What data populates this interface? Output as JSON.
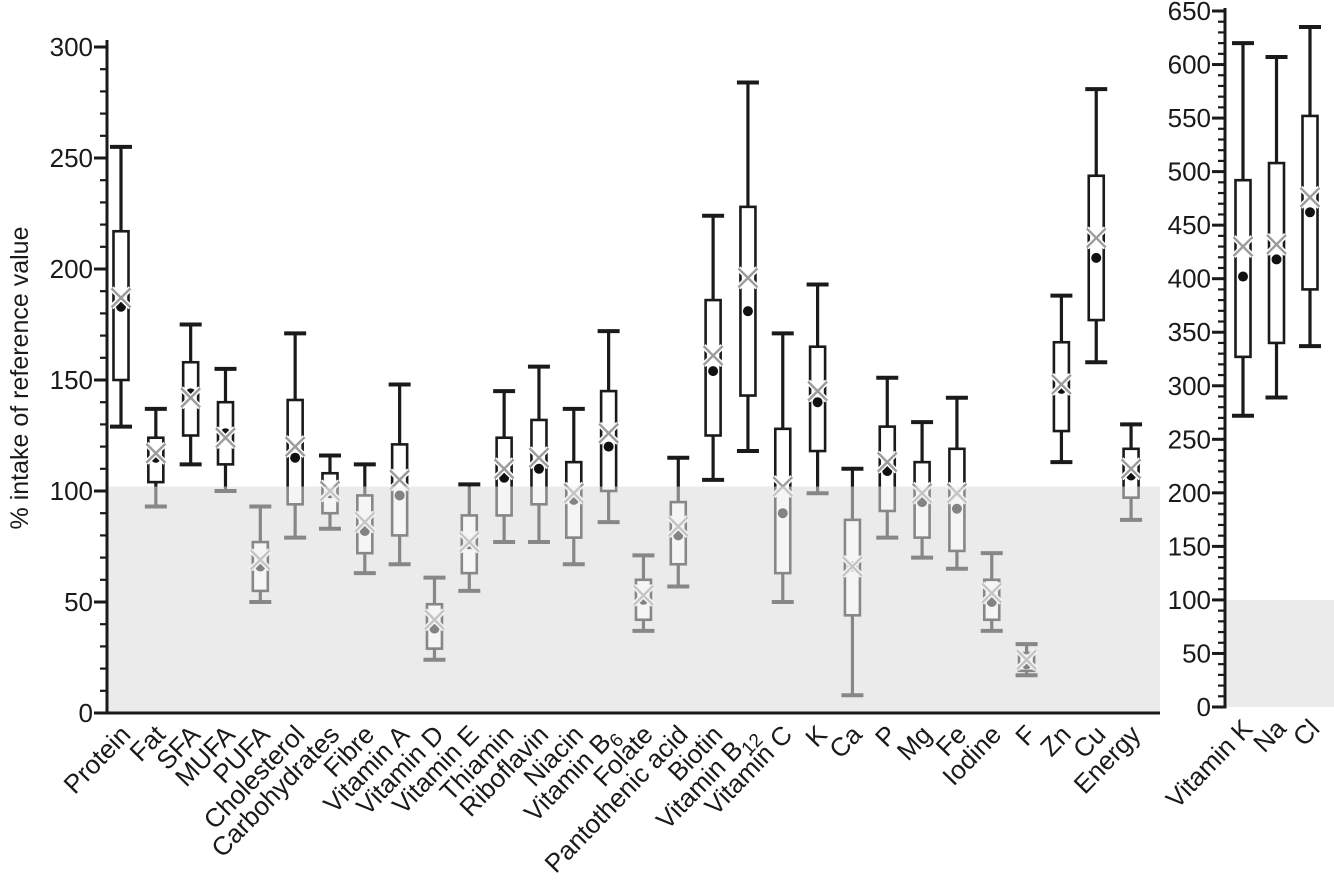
{
  "figure": {
    "y_axis_title": "% intake of reference value"
  },
  "chart_data": [
    {
      "type": "boxplot",
      "panel": "main",
      "title": "",
      "ylabel": "% intake of reference value",
      "ylim": [
        0,
        300
      ],
      "ytick_major": 50,
      "ytick_minor": 10,
      "reference_band": [
        0,
        102
      ],
      "grid": false,
      "markers": {
        "dot": "median",
        "x": "mean"
      },
      "band_color": "#ebebeb",
      "line_color": "#1a1a1a",
      "mean_marker_color": "#9c9c9c",
      "categories": [
        "Protein",
        "Fat",
        "SFA",
        "MUFA",
        "PUFA",
        "Cholesterol",
        "Carbohydrates",
        "Fibre",
        "Vitamin A",
        "Vitamin D",
        "Vitamin E",
        "Thiamin",
        "Riboflavin",
        "Niacin",
        "Vitamin B6",
        "Folate",
        "Pantothenic acid",
        "Biotin",
        "Vitamin B12",
        "Vitamin C",
        "K",
        "Ca",
        "P",
        "Mg",
        "Fe",
        "Iodine",
        "F",
        "Zn",
        "Cu",
        "Energy"
      ],
      "series": [
        {
          "name": "Protein",
          "label": "Protein",
          "sub": "",
          "low": 129,
          "q1": 150,
          "median": 183,
          "mean": 187,
          "q3": 217,
          "high": 255
        },
        {
          "name": "Fat",
          "label": "Fat",
          "sub": "",
          "low": 93,
          "q1": 104,
          "median": 115,
          "mean": 117,
          "q3": 124,
          "high": 137
        },
        {
          "name": "SFA",
          "label": "SFA",
          "sub": "",
          "low": 112,
          "q1": 125,
          "median": 144,
          "mean": 142,
          "q3": 158,
          "high": 175
        },
        {
          "name": "MUFA",
          "label": "MUFA",
          "sub": "",
          "low": 100,
          "q1": 112,
          "median": 126,
          "mean": 124,
          "q3": 140,
          "high": 155
        },
        {
          "name": "PUFA",
          "label": "PUFA",
          "sub": "",
          "low": 50,
          "q1": 55,
          "median": 66,
          "mean": 69,
          "q3": 77,
          "high": 93
        },
        {
          "name": "Cholesterol",
          "label": "Cholesterol",
          "sub": "",
          "low": 79,
          "q1": 94,
          "median": 115,
          "mean": 120,
          "q3": 141,
          "high": 171
        },
        {
          "name": "Carbohydrates",
          "label": "Carbohydrates",
          "sub": "",
          "low": 83,
          "q1": 90,
          "median": 99,
          "mean": 100,
          "q3": 108,
          "high": 116
        },
        {
          "name": "Fibre",
          "label": "Fibre",
          "sub": "",
          "low": 63,
          "q1": 72,
          "median": 82,
          "mean": 86,
          "q3": 98,
          "high": 112
        },
        {
          "name": "Vitamin A",
          "label": "Vitamin A",
          "sub": "",
          "low": 67,
          "q1": 80,
          "median": 98,
          "mean": 105,
          "q3": 121,
          "high": 148
        },
        {
          "name": "Vitamin D",
          "label": "Vitamin D",
          "sub": "",
          "low": 24,
          "q1": 29,
          "median": 38,
          "mean": 42,
          "q3": 49,
          "high": 61
        },
        {
          "name": "Vitamin E",
          "label": "Vitamin E",
          "sub": "",
          "low": 55,
          "q1": 63,
          "median": 76,
          "mean": 77,
          "q3": 89,
          "high": 103
        },
        {
          "name": "Thiamin",
          "label": "Thiamin",
          "sub": "",
          "low": 77,
          "q1": 89,
          "median": 106,
          "mean": 110,
          "q3": 124,
          "high": 145
        },
        {
          "name": "Riboflavin",
          "label": "Riboflavin",
          "sub": "",
          "low": 77,
          "q1": 94,
          "median": 110,
          "mean": 115,
          "q3": 132,
          "high": 156
        },
        {
          "name": "Niacin",
          "label": "Niacin",
          "sub": "",
          "low": 67,
          "q1": 79,
          "median": 96,
          "mean": 99,
          "q3": 113,
          "high": 137
        },
        {
          "name": "Vitamin B6",
          "label": "Vitamin B",
          "sub": "6",
          "low": 86,
          "q1": 100,
          "median": 120,
          "mean": 126,
          "q3": 145,
          "high": 172
        },
        {
          "name": "Folate",
          "label": "Folate",
          "sub": "",
          "low": 37,
          "q1": 42,
          "median": 51,
          "mean": 53,
          "q3": 60,
          "high": 71
        },
        {
          "name": "Pantothenic acid",
          "label": "Pantothenic acid",
          "sub": "",
          "low": 57,
          "q1": 67,
          "median": 80,
          "mean": 84,
          "q3": 95,
          "high": 115
        },
        {
          "name": "Biotin",
          "label": "Biotin",
          "sub": "",
          "low": 105,
          "q1": 125,
          "median": 154,
          "mean": 161,
          "q3": 186,
          "high": 224
        },
        {
          "name": "Vitamin B12",
          "label": "Vitamin B",
          "sub": "12",
          "low": 118,
          "q1": 143,
          "median": 181,
          "mean": 196,
          "q3": 228,
          "high": 284
        },
        {
          "name": "Vitamin C",
          "label": "Vitamin C",
          "sub": "",
          "low": 50,
          "q1": 63,
          "median": 90,
          "mean": 102,
          "q3": 128,
          "high": 171
        },
        {
          "name": "K",
          "label": "K",
          "sub": "",
          "low": 99,
          "q1": 118,
          "median": 140,
          "mean": 145,
          "q3": 165,
          "high": 193
        },
        {
          "name": "Ca",
          "label": "Ca",
          "sub": "",
          "low": 8,
          "q1": 44,
          "median": 66,
          "mean": 66,
          "q3": 87,
          "high": 110
        },
        {
          "name": "P",
          "label": "P",
          "sub": "",
          "low": 79,
          "q1": 91,
          "median": 109,
          "mean": 113,
          "q3": 129,
          "high": 151
        },
        {
          "name": "Mg",
          "label": "Mg",
          "sub": "",
          "low": 70,
          "q1": 79,
          "median": 95,
          "mean": 99,
          "q3": 113,
          "high": 131
        },
        {
          "name": "Fe",
          "label": "Fe",
          "sub": "",
          "low": 65,
          "q1": 73,
          "median": 92,
          "mean": 99,
          "q3": 119,
          "high": 142
        },
        {
          "name": "Iodine",
          "label": "Iodine",
          "sub": "",
          "low": 37,
          "q1": 42,
          "median": 50,
          "mean": 54,
          "q3": 60,
          "high": 72
        },
        {
          "name": "F",
          "label": "F",
          "sub": "",
          "low": 17,
          "q1": 19,
          "median": 22,
          "mean": 24,
          "q3": 27,
          "high": 31
        },
        {
          "name": "Zn",
          "label": "Zn",
          "sub": "",
          "low": 113,
          "q1": 127,
          "median": 146,
          "mean": 148,
          "q3": 167,
          "high": 188
        },
        {
          "name": "Cu",
          "label": "Cu",
          "sub": "",
          "low": 158,
          "q1": 177,
          "median": 205,
          "mean": 214,
          "q3": 242,
          "high": 281
        },
        {
          "name": "Energy",
          "label": "Energy",
          "sub": "",
          "low": 87,
          "q1": 97,
          "median": 107,
          "mean": 110,
          "q3": 119,
          "high": 130
        }
      ]
    },
    {
      "type": "boxplot",
      "panel": "overflow",
      "title": "",
      "ylabel": "",
      "ylim": [
        0,
        650
      ],
      "ytick_major": 50,
      "ytick_minor": 10,
      "reference_band": [
        0,
        100
      ],
      "grid": false,
      "markers": {
        "dot": "median",
        "x": "mean"
      },
      "band_color": "#ebebeb",
      "line_color": "#1a1a1a",
      "mean_marker_color": "#9c9c9c",
      "categories": [
        "Vitamin K",
        "Na",
        "Cl"
      ],
      "series": [
        {
          "name": "Vitamin K",
          "label": "Vitamin K",
          "sub": "",
          "low": 272,
          "q1": 327,
          "median": 402,
          "mean": 430,
          "q3": 492,
          "high": 620
        },
        {
          "name": "Na",
          "label": "Na",
          "sub": "",
          "low": 289,
          "q1": 340,
          "median": 418,
          "mean": 432,
          "q3": 508,
          "high": 607
        },
        {
          "name": "Cl",
          "label": "Cl",
          "sub": "",
          "low": 337,
          "q1": 390,
          "median": 462,
          "mean": 476,
          "q3": 552,
          "high": 635
        }
      ]
    }
  ]
}
